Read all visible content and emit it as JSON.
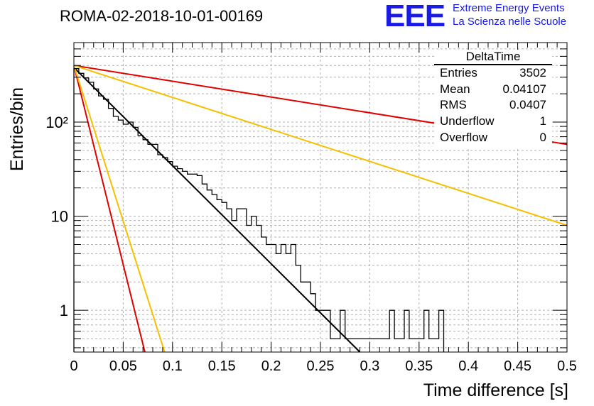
{
  "header": {
    "title": "ROMA-02-2018-10-01-00169",
    "logo_text": "EEE",
    "brand_line1": "Extreme Energy Events",
    "brand_line2": "La Scienza nelle Scuole",
    "brand_color": "#1a1ae6"
  },
  "stats": {
    "title": "DeltaTime",
    "rows": [
      {
        "label": "Entries",
        "value": "3502"
      },
      {
        "label": "Mean",
        "value": "0.04107"
      },
      {
        "label": "RMS",
        "value": "0.0407"
      },
      {
        "label": "Underflow",
        "value": "1"
      },
      {
        "label": "Overflow",
        "value": "0"
      }
    ]
  },
  "chart_data": {
    "type": "histogram",
    "title": "ROMA-02-2018-10-01-00169",
    "xlabel": "Time difference [s]",
    "ylabel": "Entries/bin",
    "xlim": [
      0,
      0.5
    ],
    "ylim": [
      0.36,
      700
    ],
    "yscale": "log",
    "grid": true,
    "x_ticks": [
      "0",
      "0.05",
      "0.1",
      "0.15",
      "0.2",
      "0.25",
      "0.3",
      "0.35",
      "0.4",
      "0.45",
      "0.5"
    ],
    "y_ticks": [
      "1",
      "10",
      "10²"
    ],
    "bin_width": 0.005,
    "histogram": {
      "bins_x": [
        0,
        0.005,
        0.01,
        0.015,
        0.02,
        0.025,
        0.03,
        0.035,
        0.04,
        0.045,
        0.05,
        0.055,
        0.06,
        0.065,
        0.07,
        0.075,
        0.08,
        0.085,
        0.09,
        0.095,
        0.1,
        0.105,
        0.11,
        0.115,
        0.12,
        0.125,
        0.13,
        0.135,
        0.14,
        0.145,
        0.15,
        0.155,
        0.16,
        0.165,
        0.17,
        0.175,
        0.18,
        0.185,
        0.19,
        0.195,
        0.2,
        0.205,
        0.21,
        0.215,
        0.22,
        0.225,
        0.23,
        0.235,
        0.24,
        0.245,
        0.25,
        0.255,
        0.26,
        0.265,
        0.27,
        0.275,
        0.28,
        0.285,
        0.29,
        0.295,
        0.3,
        0.305,
        0.31,
        0.315,
        0.32,
        0.325,
        0.33,
        0.335,
        0.34,
        0.345,
        0.35,
        0.355,
        0.36,
        0.365,
        0.37
      ],
      "counts": [
        370,
        330,
        295,
        265,
        225,
        190,
        175,
        140,
        115,
        105,
        95,
        100,
        88,
        72,
        65,
        58,
        58,
        45,
        42,
        38,
        34,
        32,
        30,
        28,
        28,
        27,
        22,
        19,
        17,
        15,
        14,
        12,
        9,
        12,
        12,
        8,
        10,
        8,
        6,
        5,
        5,
        4,
        5,
        4,
        5,
        3,
        2,
        2,
        1.5,
        1,
        1,
        1,
        0.5,
        0.5,
        1,
        0.5,
        0.5,
        0.5,
        0.5,
        0.5,
        0.5,
        0.5,
        0.5,
        0.5,
        1,
        0.5,
        0.5,
        1,
        0.5,
        0.5,
        0.5,
        1,
        0.5,
        0.5,
        1
      ]
    },
    "series": [
      {
        "name": "",
        "color": "#000000",
        "points": [
          [
            0,
            380
          ],
          [
            0.29,
            0.35
          ]
        ]
      },
      {
        "name": "",
        "color": "#e00000",
        "points": [
          [
            0,
            400
          ],
          [
            0.5,
            58
          ]
        ]
      },
      {
        "name": "",
        "color": "#f5c000",
        "points": [
          [
            0,
            400
          ],
          [
            0.5,
            8
          ]
        ]
      },
      {
        "name": "",
        "color": "#e00000",
        "points": [
          [
            0,
            400
          ],
          [
            0.072,
            0.35
          ]
        ]
      },
      {
        "name": "",
        "color": "#f5c000",
        "points": [
          [
            0,
            400
          ],
          [
            0.092,
            0.35
          ]
        ]
      }
    ]
  }
}
